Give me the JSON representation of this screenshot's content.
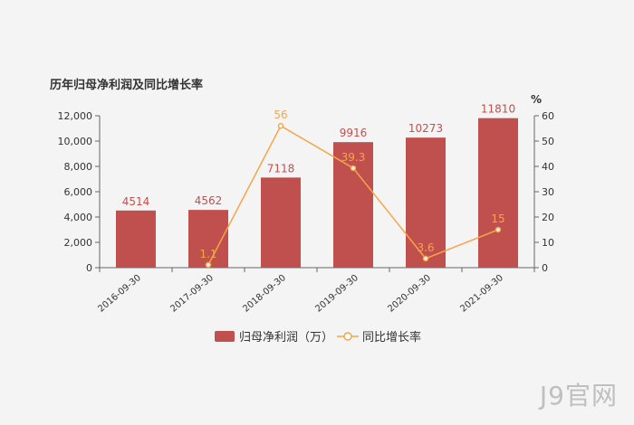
{
  "chart_data": {
    "type": "bar+line",
    "title": "历年归母净利润及同比增长率",
    "categories": [
      "2016-09-30",
      "2017-09-30",
      "2018-09-30",
      "2019-09-30",
      "2020-09-30",
      "2021-09-30"
    ],
    "series": [
      {
        "name": "归母净利润（万）",
        "type": "bar",
        "axis": "left",
        "values": [
          4514,
          4562,
          7118,
          9916,
          10273,
          11810
        ],
        "labels": [
          "4514",
          "4562",
          "7118",
          "9916",
          "10273",
          "11810"
        ],
        "color": "#c0504d"
      },
      {
        "name": "同比增长率",
        "type": "line",
        "axis": "right",
        "values": [
          null,
          1.1,
          56,
          39.3,
          3.6,
          15
        ],
        "labels": [
          "",
          "1.1",
          "56",
          "39.3",
          "3.6",
          "15"
        ],
        "color": "#f5a54a"
      }
    ],
    "y_left": {
      "min": 0,
      "max": 12000,
      "ticks": [
        "0",
        "2,000",
        "4,000",
        "6,000",
        "8,000",
        "10,000",
        "12,000"
      ]
    },
    "y_right": {
      "label": "%",
      "min": 0,
      "max": 60,
      "ticks": [
        "0",
        "10",
        "20",
        "30",
        "40",
        "50",
        "60"
      ]
    },
    "grid": false,
    "legend_position": "bottom"
  },
  "watermark": "J9官网"
}
